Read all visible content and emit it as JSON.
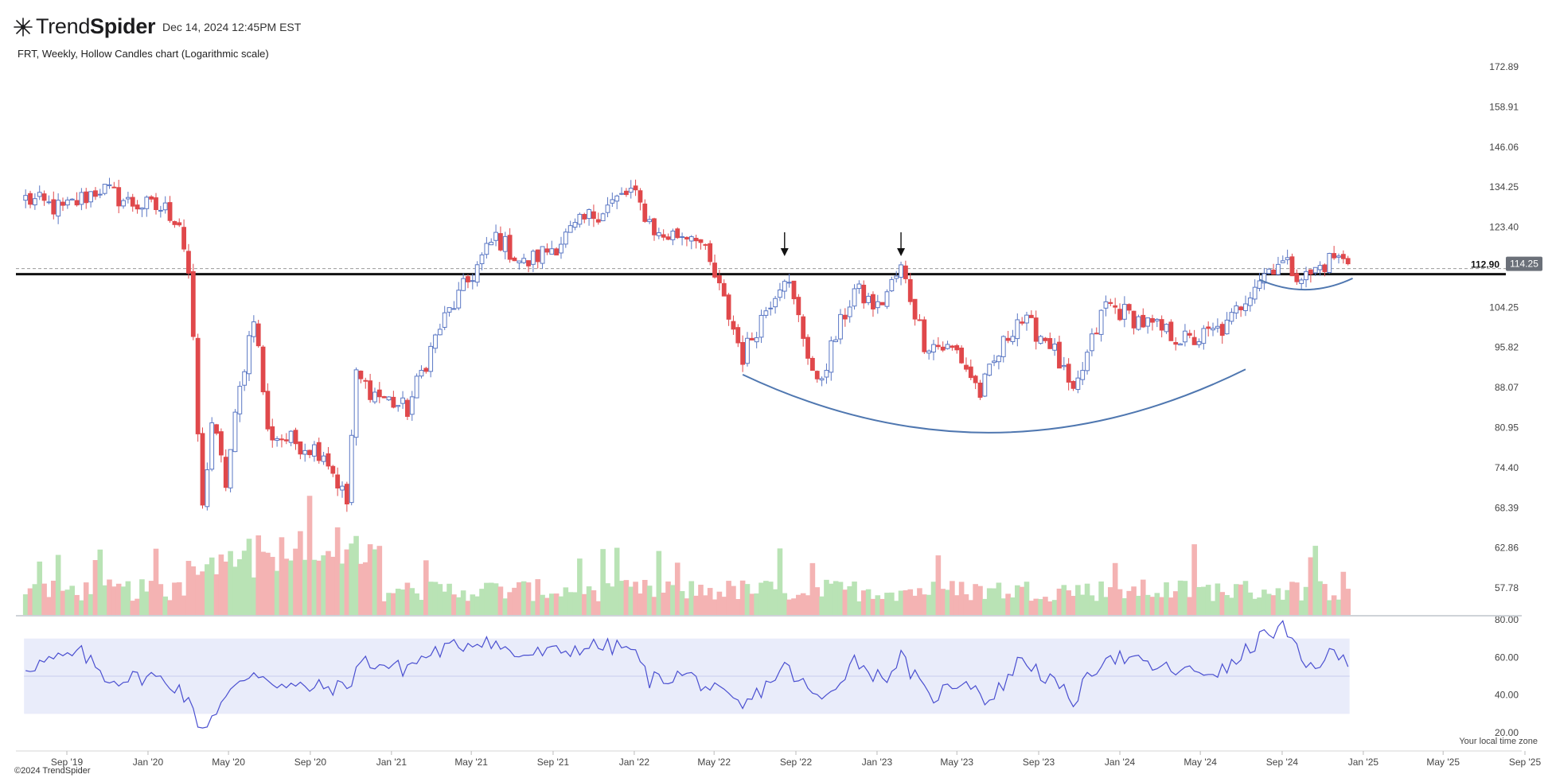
{
  "header": {
    "brand_light": "Trend",
    "brand_bold": "Spider",
    "date": "Dec 14, 2024 12:45PM EST",
    "subtitle": "FRT, Weekly, Hollow Candles chart (Logarithmic scale)"
  },
  "footer": {
    "copyright": "©2024 TrendSpider",
    "timezone_note": "Your local time zone"
  },
  "colors": {
    "up": "#5a77c4",
    "down": "#e0484b",
    "vol_up": "#b9e3b5",
    "vol_down": "#f4b3b3",
    "rsi_band": "#e9ecfa",
    "rsi_line": "#4a4fd0",
    "curve": "#4f77b0"
  },
  "chart_data": {
    "type": "candlestick",
    "symbol": "FRT",
    "interval": "Weekly",
    "scale": "log",
    "price_ticks": [
      172.89,
      158.91,
      146.06,
      134.25,
      123.4,
      113.42,
      104.25,
      95.82,
      88.07,
      80.95,
      74.4,
      68.39,
      62.86,
      57.78
    ],
    "price_tick_labels": [
      "172.89",
      "158.91",
      "146.06",
      "134.25",
      "123.40",
      "",
      "104.25",
      "95.82",
      "88.07",
      "80.95",
      "74.40",
      "68.39",
      "62.86",
      "57.78"
    ],
    "rsi_ticks": [
      "80.00",
      "60.00",
      "40.00",
      "20.00"
    ],
    "rsi_ticks_values": [
      80,
      60,
      40,
      20
    ],
    "rsi_band": [
      30,
      70
    ],
    "x_labels": [
      "Sep '19",
      "Jan '20",
      "May '20",
      "Sep '20",
      "Jan '21",
      "May '21",
      "Sep '21",
      "Jan '22",
      "May '22",
      "Sep '22",
      "Jan '23",
      "May '23",
      "Sep '23",
      "Jan '24",
      "May '24",
      "Sep '24",
      "Jan '25",
      "May '25",
      "Sep '25"
    ],
    "x_label_dates": [
      "2019-09-01",
      "2020-01-01",
      "2020-05-01",
      "2020-09-01",
      "2021-01-01",
      "2021-05-01",
      "2021-09-01",
      "2022-01-01",
      "2022-05-01",
      "2022-09-01",
      "2023-01-01",
      "2023-05-01",
      "2023-09-01",
      "2024-01-01",
      "2024-05-01",
      "2024-09-01",
      "2025-01-01",
      "2025-05-01",
      "2025-09-01"
    ],
    "start_date": "2019-07-01",
    "end_date": "2024-12-13",
    "horizontal_level": 112.9,
    "horizontal_level_label": "112.90",
    "last_price": 114.25,
    "last_price_label": "114.25",
    "arrows_at": [
      "2022-08-15",
      "2023-02-06"
    ],
    "cup_curve": [
      {
        "date": "2022-06-13",
        "price": 90.5
      },
      {
        "date": "2023-06-26",
        "price": 80.1
      },
      {
        "date": "2024-07-08",
        "price": 91.5
      }
    ],
    "handle_curve": [
      {
        "date": "2024-07-29",
        "price": 110.5
      },
      {
        "date": "2024-10-07",
        "price": 108.2
      },
      {
        "date": "2024-12-16",
        "price": 110.8
      }
    ],
    "price_path": [
      {
        "date": "2019-07-01",
        "price": 131
      },
      {
        "date": "2019-08-26",
        "price": 128
      },
      {
        "date": "2019-10-21",
        "price": 134
      },
      {
        "date": "2019-12-02",
        "price": 130
      },
      {
        "date": "2020-01-27",
        "price": 128
      },
      {
        "date": "2020-02-17",
        "price": 125
      },
      {
        "date": "2020-03-02",
        "price": 112
      },
      {
        "date": "2020-03-16",
        "price": 80
      },
      {
        "date": "2020-03-23",
        "price": 68
      },
      {
        "date": "2020-04-06",
        "price": 82
      },
      {
        "date": "2020-04-27",
        "price": 72
      },
      {
        "date": "2020-06-08",
        "price": 103
      },
      {
        "date": "2020-06-29",
        "price": 80
      },
      {
        "date": "2020-09-21",
        "price": 77
      },
      {
        "date": "2020-10-26",
        "price": 69
      },
      {
        "date": "2020-11-09",
        "price": 90
      },
      {
        "date": "2020-12-07",
        "price": 87
      },
      {
        "date": "2021-01-25",
        "price": 84
      },
      {
        "date": "2021-03-15",
        "price": 100
      },
      {
        "date": "2021-04-26",
        "price": 110
      },
      {
        "date": "2021-06-07",
        "price": 121
      },
      {
        "date": "2021-07-19",
        "price": 114
      },
      {
        "date": "2021-09-06",
        "price": 119
      },
      {
        "date": "2021-10-25",
        "price": 126
      },
      {
        "date": "2021-12-27",
        "price": 133
      },
      {
        "date": "2022-02-07",
        "price": 121
      },
      {
        "date": "2022-04-04",
        "price": 122
      },
      {
        "date": "2022-05-02",
        "price": 111
      },
      {
        "date": "2022-06-13",
        "price": 94
      },
      {
        "date": "2022-08-15",
        "price": 112
      },
      {
        "date": "2022-10-03",
        "price": 88
      },
      {
        "date": "2022-11-28",
        "price": 108
      },
      {
        "date": "2023-01-02",
        "price": 104
      },
      {
        "date": "2023-02-06",
        "price": 113
      },
      {
        "date": "2023-03-13",
        "price": 97
      },
      {
        "date": "2023-05-01",
        "price": 95
      },
      {
        "date": "2023-06-05",
        "price": 87
      },
      {
        "date": "2023-07-31",
        "price": 102
      },
      {
        "date": "2023-09-18",
        "price": 97
      },
      {
        "date": "2023-10-23",
        "price": 86
      },
      {
        "date": "2023-12-11",
        "price": 105
      },
      {
        "date": "2024-02-19",
        "price": 100
      },
      {
        "date": "2024-04-15",
        "price": 97
      },
      {
        "date": "2024-06-10",
        "price": 100
      },
      {
        "date": "2024-07-22",
        "price": 110
      },
      {
        "date": "2024-08-26",
        "price": 115
      },
      {
        "date": "2024-10-07",
        "price": 111
      },
      {
        "date": "2024-11-18",
        "price": 116
      },
      {
        "date": "2024-12-09",
        "price": 114.25
      }
    ],
    "rsi_path": [
      {
        "date": "2019-07-01",
        "v": 55
      },
      {
        "date": "2019-09-23",
        "v": 62
      },
      {
        "date": "2019-11-04",
        "v": 48
      },
      {
        "date": "2020-01-06",
        "v": 50
      },
      {
        "date": "2020-02-17",
        "v": 44
      },
      {
        "date": "2020-03-23",
        "v": 22
      },
      {
        "date": "2020-04-20",
        "v": 36
      },
      {
        "date": "2020-06-08",
        "v": 53
      },
      {
        "date": "2020-07-27",
        "v": 44
      },
      {
        "date": "2020-10-26",
        "v": 44
      },
      {
        "date": "2020-11-16",
        "v": 58
      },
      {
        "date": "2021-01-18",
        "v": 54
      },
      {
        "date": "2021-03-08",
        "v": 63
      },
      {
        "date": "2021-05-24",
        "v": 70
      },
      {
        "date": "2021-07-05",
        "v": 61
      },
      {
        "date": "2021-09-13",
        "v": 63
      },
      {
        "date": "2021-10-25",
        "v": 66
      },
      {
        "date": "2021-12-27",
        "v": 65
      },
      {
        "date": "2022-01-24",
        "v": 48
      },
      {
        "date": "2022-03-21",
        "v": 51
      },
      {
        "date": "2022-06-13",
        "v": 33
      },
      {
        "date": "2022-08-15",
        "v": 55
      },
      {
        "date": "2022-10-10",
        "v": 36
      },
      {
        "date": "2022-11-28",
        "v": 59
      },
      {
        "date": "2023-01-09",
        "v": 48
      },
      {
        "date": "2023-02-06",
        "v": 60
      },
      {
        "date": "2023-03-20",
        "v": 38
      },
      {
        "date": "2023-05-15",
        "v": 49
      },
      {
        "date": "2023-06-19",
        "v": 36
      },
      {
        "date": "2023-08-07",
        "v": 60
      },
      {
        "date": "2023-10-23",
        "v": 37
      },
      {
        "date": "2023-12-11",
        "v": 62
      },
      {
        "date": "2024-02-19",
        "v": 55
      },
      {
        "date": "2024-04-15",
        "v": 52
      },
      {
        "date": "2024-06-10",
        "v": 53
      },
      {
        "date": "2024-07-29",
        "v": 70
      },
      {
        "date": "2024-09-02",
        "v": 76
      },
      {
        "date": "2024-10-07",
        "v": 54
      },
      {
        "date": "2024-11-18",
        "v": 62
      },
      {
        "date": "2024-12-09",
        "v": 57
      }
    ]
  }
}
